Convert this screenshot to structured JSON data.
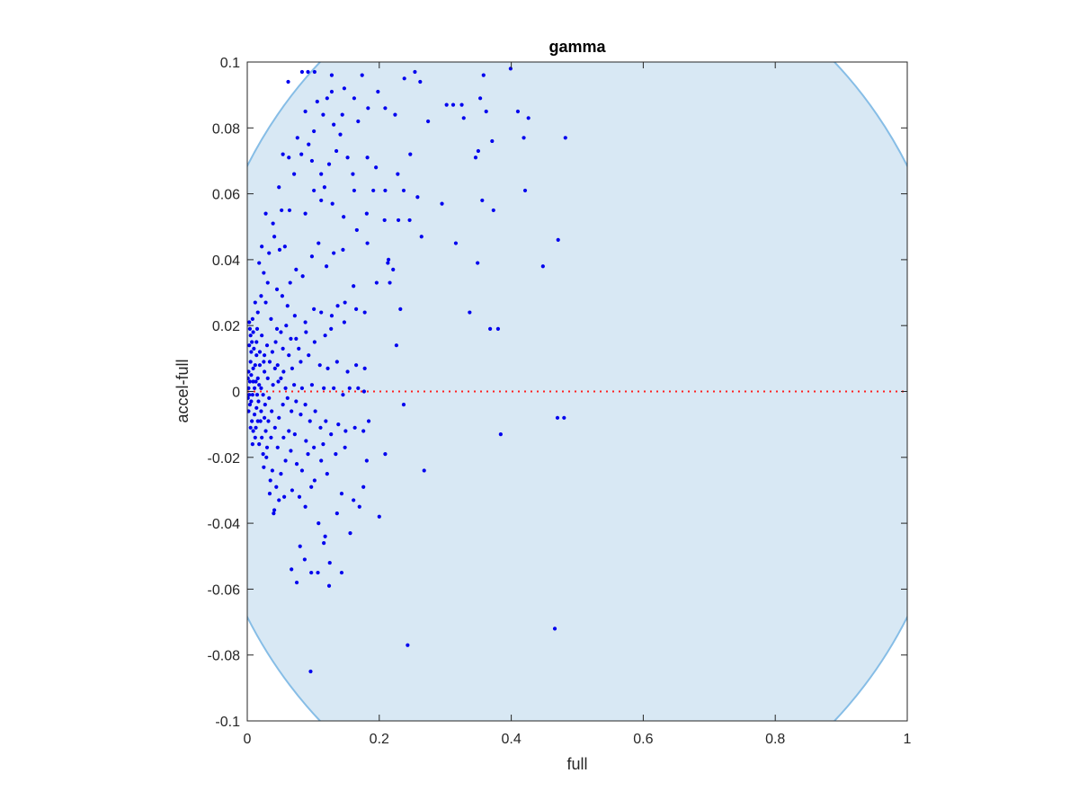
{
  "chart_data": {
    "type": "scatter",
    "title": "gamma",
    "xlabel": "full",
    "ylabel": "accel-full",
    "xlim": [
      0,
      1
    ],
    "ylim": [
      -0.1,
      0.1
    ],
    "xticks": [
      0,
      0.2,
      0.4,
      0.6,
      0.8,
      1
    ],
    "xtick_labels": [
      "0",
      "0.2",
      "0.4",
      "0.6",
      "0.8",
      "1"
    ],
    "yticks": [
      -0.1,
      -0.08,
      -0.06,
      -0.04,
      -0.02,
      0,
      0.02,
      0.04,
      0.06,
      0.08,
      0.1
    ],
    "ytick_labels": [
      "-0.1",
      "-0.08",
      "-0.06",
      "-0.04",
      "-0.02",
      "0",
      "0.02",
      "0.04",
      "0.06",
      "0.08",
      "0.1"
    ],
    "grid": false,
    "legend": "none",
    "colors": {
      "points": "#0000ee",
      "region_fill": "#d8e8f4",
      "region_edge": "#86bde6",
      "zero_line": "#ff2020",
      "axes": "#262626"
    },
    "shaded_region": {
      "shape": "ellipse",
      "center": [
        0.5,
        0
      ],
      "semi_axis_x": 0.58,
      "semi_axis_y": 0.135
    },
    "reference_line": {
      "y": 0,
      "style": "dotted"
    },
    "points": [
      [
        0.062,
        0.094
      ],
      [
        0.083,
        0.097
      ],
      [
        0.092,
        0.097
      ],
      [
        0.102,
        0.097
      ],
      [
        0.128,
        0.096
      ],
      [
        0.147,
        0.092
      ],
      [
        0.174,
        0.096
      ],
      [
        0.198,
        0.091
      ],
      [
        0.238,
        0.095
      ],
      [
        0.254,
        0.097
      ],
      [
        0.262,
        0.094
      ],
      [
        0.302,
        0.087
      ],
      [
        0.312,
        0.087
      ],
      [
        0.325,
        0.087
      ],
      [
        0.353,
        0.089
      ],
      [
        0.358,
        0.096
      ],
      [
        0.399,
        0.098
      ],
      [
        0.426,
        0.083
      ],
      [
        0.41,
        0.085
      ],
      [
        0.419,
        0.077
      ],
      [
        0.362,
        0.085
      ],
      [
        0.328,
        0.083
      ],
      [
        0.274,
        0.082
      ],
      [
        0.224,
        0.084
      ],
      [
        0.209,
        0.086
      ],
      [
        0.144,
        0.084
      ],
      [
        0.121,
        0.089
      ],
      [
        0.128,
        0.091
      ],
      [
        0.162,
        0.089
      ],
      [
        0.183,
        0.086
      ],
      [
        0.106,
        0.088
      ],
      [
        0.088,
        0.085
      ],
      [
        0.115,
        0.084
      ],
      [
        0.131,
        0.081
      ],
      [
        0.168,
        0.082
      ],
      [
        0.141,
        0.078
      ],
      [
        0.101,
        0.079
      ],
      [
        0.093,
        0.075
      ],
      [
        0.076,
        0.077
      ],
      [
        0.063,
        0.071
      ],
      [
        0.054,
        0.072
      ],
      [
        0.082,
        0.072
      ],
      [
        0.098,
        0.07
      ],
      [
        0.112,
        0.066
      ],
      [
        0.124,
        0.069
      ],
      [
        0.135,
        0.073
      ],
      [
        0.152,
        0.071
      ],
      [
        0.16,
        0.066
      ],
      [
        0.182,
        0.071
      ],
      [
        0.195,
        0.068
      ],
      [
        0.228,
        0.066
      ],
      [
        0.247,
        0.072
      ],
      [
        0.346,
        0.071
      ],
      [
        0.35,
        0.073
      ],
      [
        0.371,
        0.076
      ],
      [
        0.482,
        0.077
      ],
      [
        0.421,
        0.061
      ],
      [
        0.356,
        0.058
      ],
      [
        0.373,
        0.055
      ],
      [
        0.295,
        0.057
      ],
      [
        0.258,
        0.059
      ],
      [
        0.237,
        0.061
      ],
      [
        0.209,
        0.061
      ],
      [
        0.191,
        0.061
      ],
      [
        0.162,
        0.061
      ],
      [
        0.117,
        0.062
      ],
      [
        0.101,
        0.061
      ],
      [
        0.071,
        0.066
      ],
      [
        0.048,
        0.062
      ],
      [
        0.052,
        0.055
      ],
      [
        0.028,
        0.054
      ],
      [
        0.039,
        0.051
      ],
      [
        0.064,
        0.055
      ],
      [
        0.088,
        0.054
      ],
      [
        0.112,
        0.058
      ],
      [
        0.129,
        0.057
      ],
      [
        0.146,
        0.053
      ],
      [
        0.181,
        0.054
      ],
      [
        0.208,
        0.052
      ],
      [
        0.229,
        0.052
      ],
      [
        0.246,
        0.052
      ],
      [
        0.264,
        0.047
      ],
      [
        0.316,
        0.045
      ],
      [
        0.471,
        0.046
      ],
      [
        0.448,
        0.038
      ],
      [
        0.349,
        0.039
      ],
      [
        0.337,
        0.024
      ],
      [
        0.368,
        0.019
      ],
      [
        0.38,
        0.019
      ],
      [
        0.221,
        0.037
      ],
      [
        0.213,
        0.039
      ],
      [
        0.214,
        0.04
      ],
      [
        0.196,
        0.033
      ],
      [
        0.182,
        0.045
      ],
      [
        0.166,
        0.049
      ],
      [
        0.145,
        0.043
      ],
      [
        0.131,
        0.042
      ],
      [
        0.12,
        0.038
      ],
      [
        0.108,
        0.045
      ],
      [
        0.098,
        0.041
      ],
      [
        0.084,
        0.035
      ],
      [
        0.074,
        0.037
      ],
      [
        0.065,
        0.033
      ],
      [
        0.057,
        0.044
      ],
      [
        0.049,
        0.043
      ],
      [
        0.041,
        0.047
      ],
      [
        0.033,
        0.042
      ],
      [
        0.022,
        0.044
      ],
      [
        0.018,
        0.039
      ],
      [
        0.025,
        0.036
      ],
      [
        0.031,
        0.033
      ],
      [
        0.045,
        0.031
      ],
      [
        0.053,
        0.029
      ],
      [
        0.061,
        0.026
      ],
      [
        0.072,
        0.023
      ],
      [
        0.088,
        0.021
      ],
      [
        0.101,
        0.025
      ],
      [
        0.112,
        0.024
      ],
      [
        0.128,
        0.023
      ],
      [
        0.137,
        0.026
      ],
      [
        0.147,
        0.021
      ],
      [
        0.165,
        0.025
      ],
      [
        0.178,
        0.024
      ],
      [
        0.232,
        0.025
      ],
      [
        0.216,
        0.033
      ],
      [
        0.161,
        0.032
      ],
      [
        0.148,
        0.027
      ],
      [
        0.127,
        0.019
      ],
      [
        0.118,
        0.017
      ],
      [
        0.102,
        0.015
      ],
      [
        0.089,
        0.018
      ],
      [
        0.074,
        0.016
      ],
      [
        0.063,
        0.011
      ],
      [
        0.054,
        0.013
      ],
      [
        0.045,
        0.019
      ],
      [
        0.036,
        0.022
      ],
      [
        0.028,
        0.027
      ],
      [
        0.021,
        0.029
      ],
      [
        0.016,
        0.024
      ],
      [
        0.012,
        0.027
      ],
      [
        0.008,
        0.022
      ],
      [
        0.015,
        0.019
      ],
      [
        0.022,
        0.017
      ],
      [
        0.03,
        0.014
      ],
      [
        0.038,
        0.012
      ],
      [
        0.046,
        0.008
      ],
      [
        0.055,
        0.006
      ],
      [
        0.068,
        0.007
      ],
      [
        0.081,
        0.009
      ],
      [
        0.093,
        0.011
      ],
      [
        0.11,
        0.008
      ],
      [
        0.122,
        0.007
      ],
      [
        0.136,
        0.009
      ],
      [
        0.152,
        0.006
      ],
      [
        0.165,
        0.008
      ],
      [
        0.178,
        0.007
      ],
      [
        0.226,
        0.014
      ],
      [
        0.131,
        0.001
      ],
      [
        0.145,
        -0.001
      ],
      [
        0.155,
        0.001
      ],
      [
        0.168,
        0.001
      ],
      [
        0.177,
        0.0
      ],
      [
        0.116,
        0.001
      ],
      [
        0.098,
        0.002
      ],
      [
        0.083,
        0.001
      ],
      [
        0.071,
        0.002
      ],
      [
        0.058,
        0.001
      ],
      [
        0.047,
        0.003
      ],
      [
        0.039,
        0.002
      ],
      [
        0.031,
        0.004
      ],
      [
        0.026,
        0.006
      ],
      [
        0.019,
        0.008
      ],
      [
        0.014,
        0.011
      ],
      [
        0.01,
        0.013
      ],
      [
        0.007,
        0.015
      ],
      [
        0.005,
        0.017
      ],
      [
        0.004,
        0.019
      ],
      [
        0.003,
        0.021
      ],
      [
        0.003,
        0.014
      ],
      [
        0.005,
        0.009
      ],
      [
        0.006,
        0.005
      ],
      [
        0.004,
        0.003
      ],
      [
        0.002,
        0.006
      ],
      [
        0.001,
        0.004
      ],
      [
        0.002,
        0.001
      ],
      [
        0.003,
        -0.001
      ],
      [
        0.001,
        -0.002
      ],
      [
        0.004,
        -0.004
      ],
      [
        0.002,
        -0.006
      ],
      [
        0.006,
        -0.003
      ],
      [
        0.008,
        -0.001
      ],
      [
        0.011,
        0.001
      ],
      [
        0.013,
        0.003
      ],
      [
        0.009,
        0.007
      ],
      [
        0.012,
        0.008
      ],
      [
        0.016,
        0.004
      ],
      [
        0.018,
        0.002
      ],
      [
        0.021,
        0.001
      ],
      [
        0.024,
        -0.001
      ],
      [
        0.017,
        -0.003
      ],
      [
        0.014,
        -0.005
      ],
      [
        0.011,
        -0.007
      ],
      [
        0.007,
        -0.009
      ],
      [
        0.005,
        -0.011
      ],
      [
        0.009,
        -0.012
      ],
      [
        0.013,
        -0.011
      ],
      [
        0.016,
        -0.009
      ],
      [
        0.021,
        -0.006
      ],
      [
        0.027,
        -0.004
      ],
      [
        0.033,
        -0.002
      ],
      [
        0.037,
        -0.006
      ],
      [
        0.032,
        -0.009
      ],
      [
        0.028,
        -0.012
      ],
      [
        0.022,
        -0.014
      ],
      [
        0.018,
        -0.016
      ],
      [
        0.024,
        -0.019
      ],
      [
        0.03,
        -0.017
      ],
      [
        0.036,
        -0.014
      ],
      [
        0.042,
        -0.011
      ],
      [
        0.048,
        -0.008
      ],
      [
        0.054,
        -0.004
      ],
      [
        0.061,
        -0.002
      ],
      [
        0.067,
        -0.006
      ],
      [
        0.074,
        -0.003
      ],
      [
        0.081,
        -0.007
      ],
      [
        0.088,
        -0.004
      ],
      [
        0.095,
        -0.009
      ],
      [
        0.103,
        -0.006
      ],
      [
        0.111,
        -0.011
      ],
      [
        0.119,
        -0.009
      ],
      [
        0.127,
        -0.013
      ],
      [
        0.138,
        -0.01
      ],
      [
        0.149,
        -0.012
      ],
      [
        0.163,
        -0.011
      ],
      [
        0.176,
        -0.012
      ],
      [
        0.184,
        -0.009
      ],
      [
        0.237,
        -0.004
      ],
      [
        0.47,
        -0.008
      ],
      [
        0.48,
        -0.008
      ],
      [
        0.384,
        -0.013
      ],
      [
        0.268,
        -0.024
      ],
      [
        0.209,
        -0.019
      ],
      [
        0.181,
        -0.021
      ],
      [
        0.176,
        -0.029
      ],
      [
        0.2,
        -0.038
      ],
      [
        0.17,
        -0.035
      ],
      [
        0.161,
        -0.033
      ],
      [
        0.156,
        -0.043
      ],
      [
        0.143,
        -0.031
      ],
      [
        0.136,
        -0.037
      ],
      [
        0.121,
        -0.025
      ],
      [
        0.112,
        -0.021
      ],
      [
        0.102,
        -0.027
      ],
      [
        0.092,
        -0.019
      ],
      [
        0.083,
        -0.024
      ],
      [
        0.075,
        -0.022
      ],
      [
        0.066,
        -0.018
      ],
      [
        0.058,
        -0.021
      ],
      [
        0.051,
        -0.025
      ],
      [
        0.044,
        -0.029
      ],
      [
        0.038,
        -0.024
      ],
      [
        0.034,
        -0.031
      ],
      [
        0.041,
        -0.036
      ],
      [
        0.048,
        -0.033
      ],
      [
        0.056,
        -0.032
      ],
      [
        0.068,
        -0.03
      ],
      [
        0.079,
        -0.032
      ],
      [
        0.088,
        -0.035
      ],
      [
        0.097,
        -0.029
      ],
      [
        0.108,
        -0.04
      ],
      [
        0.116,
        -0.046
      ],
      [
        0.118,
        -0.044
      ],
      [
        0.125,
        -0.052
      ],
      [
        0.124,
        -0.059
      ],
      [
        0.143,
        -0.055
      ],
      [
        0.107,
        -0.055
      ],
      [
        0.097,
        -0.055
      ],
      [
        0.087,
        -0.051
      ],
      [
        0.08,
        -0.047
      ],
      [
        0.067,
        -0.054
      ],
      [
        0.075,
        -0.058
      ],
      [
        0.096,
        -0.085
      ],
      [
        0.243,
        -0.077
      ],
      [
        0.466,
        -0.072
      ],
      [
        0.04,
        -0.037
      ],
      [
        0.035,
        -0.027
      ],
      [
        0.029,
        -0.02
      ],
      [
        0.025,
        -0.023
      ],
      [
        0.046,
        -0.017
      ],
      [
        0.055,
        -0.014
      ],
      [
        0.063,
        -0.012
      ],
      [
        0.072,
        -0.013
      ],
      [
        0.089,
        -0.015
      ],
      [
        0.101,
        -0.017
      ],
      [
        0.115,
        -0.016
      ],
      [
        0.134,
        -0.019
      ],
      [
        0.148,
        -0.017
      ],
      [
        0.026,
        0.011
      ],
      [
        0.034,
        0.009
      ],
      [
        0.042,
        0.007
      ],
      [
        0.051,
        0.004
      ],
      [
        0.043,
        0.015
      ],
      [
        0.051,
        0.018
      ],
      [
        0.059,
        0.02
      ],
      [
        0.066,
        0.016
      ],
      [
        0.078,
        0.013
      ],
      [
        0.014,
        0.015
      ],
      [
        0.019,
        0.012
      ],
      [
        0.025,
        0.009
      ],
      [
        0.009,
        0.018
      ],
      [
        0.006,
        0.012
      ],
      [
        0.009,
        0.003
      ],
      [
        0.015,
        -0.001
      ],
      [
        0.02,
        -0.009
      ],
      [
        0.026,
        -0.008
      ],
      [
        0.012,
        -0.014
      ],
      [
        0.008,
        -0.016
      ]
    ]
  }
}
